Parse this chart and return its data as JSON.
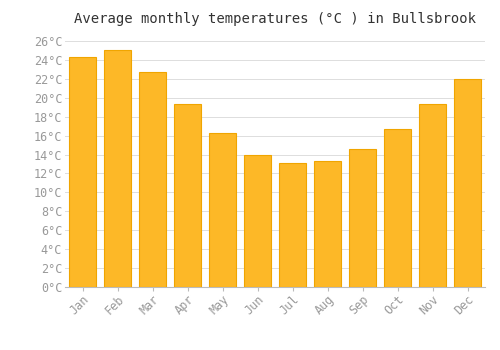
{
  "title": "Average monthly temperatures (°C ) in Bullsbrook",
  "months": [
    "Jan",
    "Feb",
    "Mar",
    "Apr",
    "May",
    "Jun",
    "Jul",
    "Aug",
    "Sep",
    "Oct",
    "Nov",
    "Dec"
  ],
  "values": [
    24.3,
    25.0,
    22.7,
    19.3,
    16.3,
    14.0,
    13.1,
    13.3,
    14.6,
    16.7,
    19.3,
    22.0
  ],
  "bar_color": "#FDB827",
  "bar_edge_color": "#F0A500",
  "background_color": "#FFFFFF",
  "grid_color": "#DDDDDD",
  "ylim": [
    0,
    27
  ],
  "yticks": [
    0,
    2,
    4,
    6,
    8,
    10,
    12,
    14,
    16,
    18,
    20,
    22,
    24,
    26
  ],
  "title_fontsize": 10,
  "tick_fontsize": 8.5,
  "tick_color": "#999999"
}
